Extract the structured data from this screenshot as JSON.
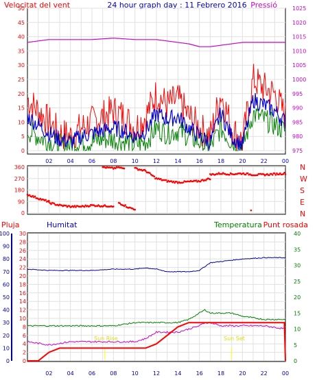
{
  "header": {
    "left": "Velocitat del vent",
    "center": "24 hour graph day : 11 Febrero 2016",
    "right": "Pressió"
  },
  "compass": [
    "N",
    "W",
    "S",
    "E",
    "N"
  ],
  "labels_bottom": {
    "pluja": "Pluja",
    "humitat": "Humitat",
    "temperatura": "Temperatura",
    "punt_rosada": "Punt rosada",
    "sun_rise": "Sun Rise",
    "sun_set": "Sun Set"
  },
  "colors": {
    "wind_gust": "#ff0000",
    "wind_avg": "#0000cc",
    "wind_low": "#008000",
    "pressure": "#cc00cc",
    "direction": "#ff0000",
    "rain": "#ff0000",
    "humidity": "#000099",
    "temperature": "#008000",
    "dewpoint": "#cc00cc",
    "sun": "#ffff00",
    "grid": "#e0e0e0",
    "frame": "#000000"
  },
  "chart_data": [
    {
      "type": "line",
      "panel": "wind_pressure",
      "x_ticks": [
        "02",
        "04",
        "06",
        "08",
        "10",
        "12",
        "14",
        "16",
        "18",
        "20",
        "22",
        "00"
      ],
      "y_left": {
        "label": "Velocitat del vent",
        "ticks": [
          0,
          5,
          10,
          15,
          20,
          25,
          30,
          35,
          40,
          45,
          50
        ],
        "range": [
          0,
          50
        ]
      },
      "y_right": {
        "label": "Pressió",
        "ticks": [
          975,
          980,
          985,
          990,
          995,
          1000,
          1005,
          1010,
          1015,
          1020,
          1025
        ],
        "range": [
          975,
          1025
        ]
      },
      "series": [
        {
          "key": "gust",
          "axis": "left",
          "hours": [
            0,
            1,
            2,
            3,
            4,
            5,
            6,
            7,
            8,
            9,
            10,
            11,
            12,
            13,
            14,
            15,
            16,
            17,
            18,
            19,
            20,
            21,
            22,
            23,
            24
          ],
          "values": [
            18,
            14,
            10,
            6,
            5,
            8,
            10,
            12,
            14,
            12,
            8,
            12,
            20,
            16,
            18,
            12,
            8,
            5,
            20,
            8,
            3,
            25,
            22,
            20,
            12
          ]
        },
        {
          "key": "average",
          "axis": "left",
          "hours": [
            0,
            1,
            2,
            3,
            4,
            5,
            6,
            7,
            8,
            9,
            10,
            11,
            12,
            13,
            14,
            15,
            16,
            17,
            18,
            19,
            20,
            21,
            22,
            23,
            24
          ],
          "values": [
            12,
            9,
            6,
            4,
            3,
            5,
            6,
            7,
            8,
            7,
            5,
            7,
            13,
            11,
            12,
            8,
            5,
            3,
            13,
            5,
            2,
            18,
            16,
            14,
            10
          ]
        },
        {
          "key": "low",
          "axis": "left",
          "hours": [
            0,
            1,
            2,
            3,
            4,
            5,
            6,
            7,
            8,
            9,
            10,
            11,
            12,
            13,
            14,
            15,
            16,
            17,
            18,
            19,
            20,
            21,
            22,
            23,
            24
          ],
          "values": [
            7,
            5,
            3,
            2,
            2,
            3,
            3,
            4,
            4,
            3,
            2,
            3,
            8,
            6,
            7,
            5,
            3,
            1,
            8,
            3,
            1,
            13,
            11,
            9,
            7
          ]
        },
        {
          "key": "pressure",
          "axis": "right",
          "hours": [
            0,
            2,
            4,
            6,
            8,
            10,
            12,
            14,
            15,
            16,
            17,
            18,
            19,
            20,
            22,
            24
          ],
          "values": [
            1013,
            1014,
            1014,
            1014,
            1014.5,
            1014,
            1014,
            1013,
            1012.5,
            1011.5,
            1011.5,
            1012,
            1012.5,
            1013,
            1013,
            1013
          ]
        }
      ]
    },
    {
      "type": "scatter",
      "panel": "wind_direction",
      "y_ticks": [
        0,
        90,
        180,
        270,
        360
      ],
      "range": [
        0,
        360
      ],
      "segments": [
        {
          "hours": [
            0.0,
            0.5,
            1.0,
            1.5,
            2.0
          ],
          "values": [
            145,
            130,
            115,
            100,
            90
          ]
        },
        {
          "hours": [
            2.0,
            3.0,
            4.0,
            5.0,
            6.0,
            7.0,
            8.0
          ],
          "values": [
            80,
            60,
            50,
            50,
            60,
            55,
            55
          ]
        },
        {
          "hours": [
            7.0,
            7.5,
            8.0,
            8.5,
            9.0
          ],
          "values": [
            360,
            355,
            350,
            360,
            345
          ]
        },
        {
          "hours": [
            8.5,
            9.0,
            9.5,
            10.0
          ],
          "values": [
            80,
            60,
            40,
            30
          ]
        },
        {
          "hours": [
            10.0,
            11.0,
            11.5,
            12.0,
            13.0,
            14.0,
            15.0,
            16.0,
            17.0
          ],
          "values": [
            350,
            330,
            300,
            270,
            250,
            240,
            245,
            250,
            270
          ]
        },
        {
          "hours": [
            17.0,
            18.0,
            19.0,
            20.0,
            21.0,
            22.0,
            23.0,
            24.0
          ],
          "values": [
            300,
            310,
            305,
            310,
            300,
            300,
            305,
            310
          ]
        },
        {
          "hours": [
            20.8
          ],
          "values": [
            20
          ]
        }
      ]
    },
    {
      "type": "line",
      "panel": "rain_humidity_temp",
      "y_left_rain": {
        "label": "Pluja",
        "ticks": [
          0,
          2,
          4,
          6,
          8,
          10,
          12,
          14,
          16,
          18,
          20,
          22,
          24,
          26,
          28,
          30
        ],
        "range": [
          0,
          30
        ]
      },
      "y_left_humidity": {
        "label": "Humitat",
        "ticks": [
          0,
          10,
          20,
          30,
          40,
          50,
          60,
          70,
          80,
          90,
          100
        ],
        "range": [
          0,
          100
        ]
      },
      "y_right_temp": {
        "label": "Temperatura",
        "ticks": [
          0,
          5,
          10,
          15,
          20,
          25,
          30,
          35,
          40
        ],
        "range": [
          0,
          40
        ]
      },
      "series": [
        {
          "key": "rain",
          "axis": "rain",
          "hours": [
            0,
            1,
            1.5,
            2,
            3,
            4,
            5,
            6,
            7,
            8,
            9,
            10,
            11,
            12,
            13,
            14,
            15,
            16,
            17,
            18,
            19,
            20,
            21,
            22,
            23,
            23.9,
            24
          ],
          "values": [
            0,
            0,
            1,
            2,
            3,
            3,
            3,
            3,
            3,
            3,
            3,
            3,
            3,
            4,
            6,
            8,
            9,
            9,
            9,
            9,
            9,
            9,
            9,
            9,
            9,
            9,
            0
          ]
        },
        {
          "key": "humidity",
          "axis": "humidity",
          "hours": [
            0,
            2,
            4,
            6,
            8,
            10,
            11,
            12,
            13,
            14,
            15,
            16,
            16.5,
            17,
            18,
            19,
            20,
            22,
            24
          ],
          "values": [
            72,
            71,
            71,
            71,
            72,
            72,
            73,
            72,
            70,
            70,
            70,
            71,
            74,
            77,
            78,
            79,
            80,
            81,
            81
          ]
        },
        {
          "key": "temperature",
          "axis": "temp",
          "hours": [
            0,
            2,
            4,
            6,
            8,
            10,
            11,
            12,
            13,
            14,
            15,
            16,
            16.5,
            17,
            18,
            19,
            20,
            22,
            24
          ],
          "values": [
            11,
            11,
            11,
            11,
            11,
            12,
            12,
            12,
            12,
            12,
            13,
            15,
            16,
            15,
            15,
            15,
            14,
            13,
            13
          ]
        },
        {
          "key": "dewpoint",
          "axis": "temp",
          "hours": [
            0,
            2,
            4,
            6,
            8,
            10,
            11,
            12,
            13,
            14,
            15,
            16,
            16.5,
            17,
            18,
            19,
            20,
            22,
            24
          ],
          "values": [
            6,
            5,
            6,
            6,
            6,
            6,
            7,
            9,
            9,
            9,
            10,
            11,
            12,
            12,
            11,
            11,
            11,
            11,
            10
          ]
        }
      ],
      "sunrise_hour": 7.2,
      "sunset_hour": 19.0
    }
  ]
}
